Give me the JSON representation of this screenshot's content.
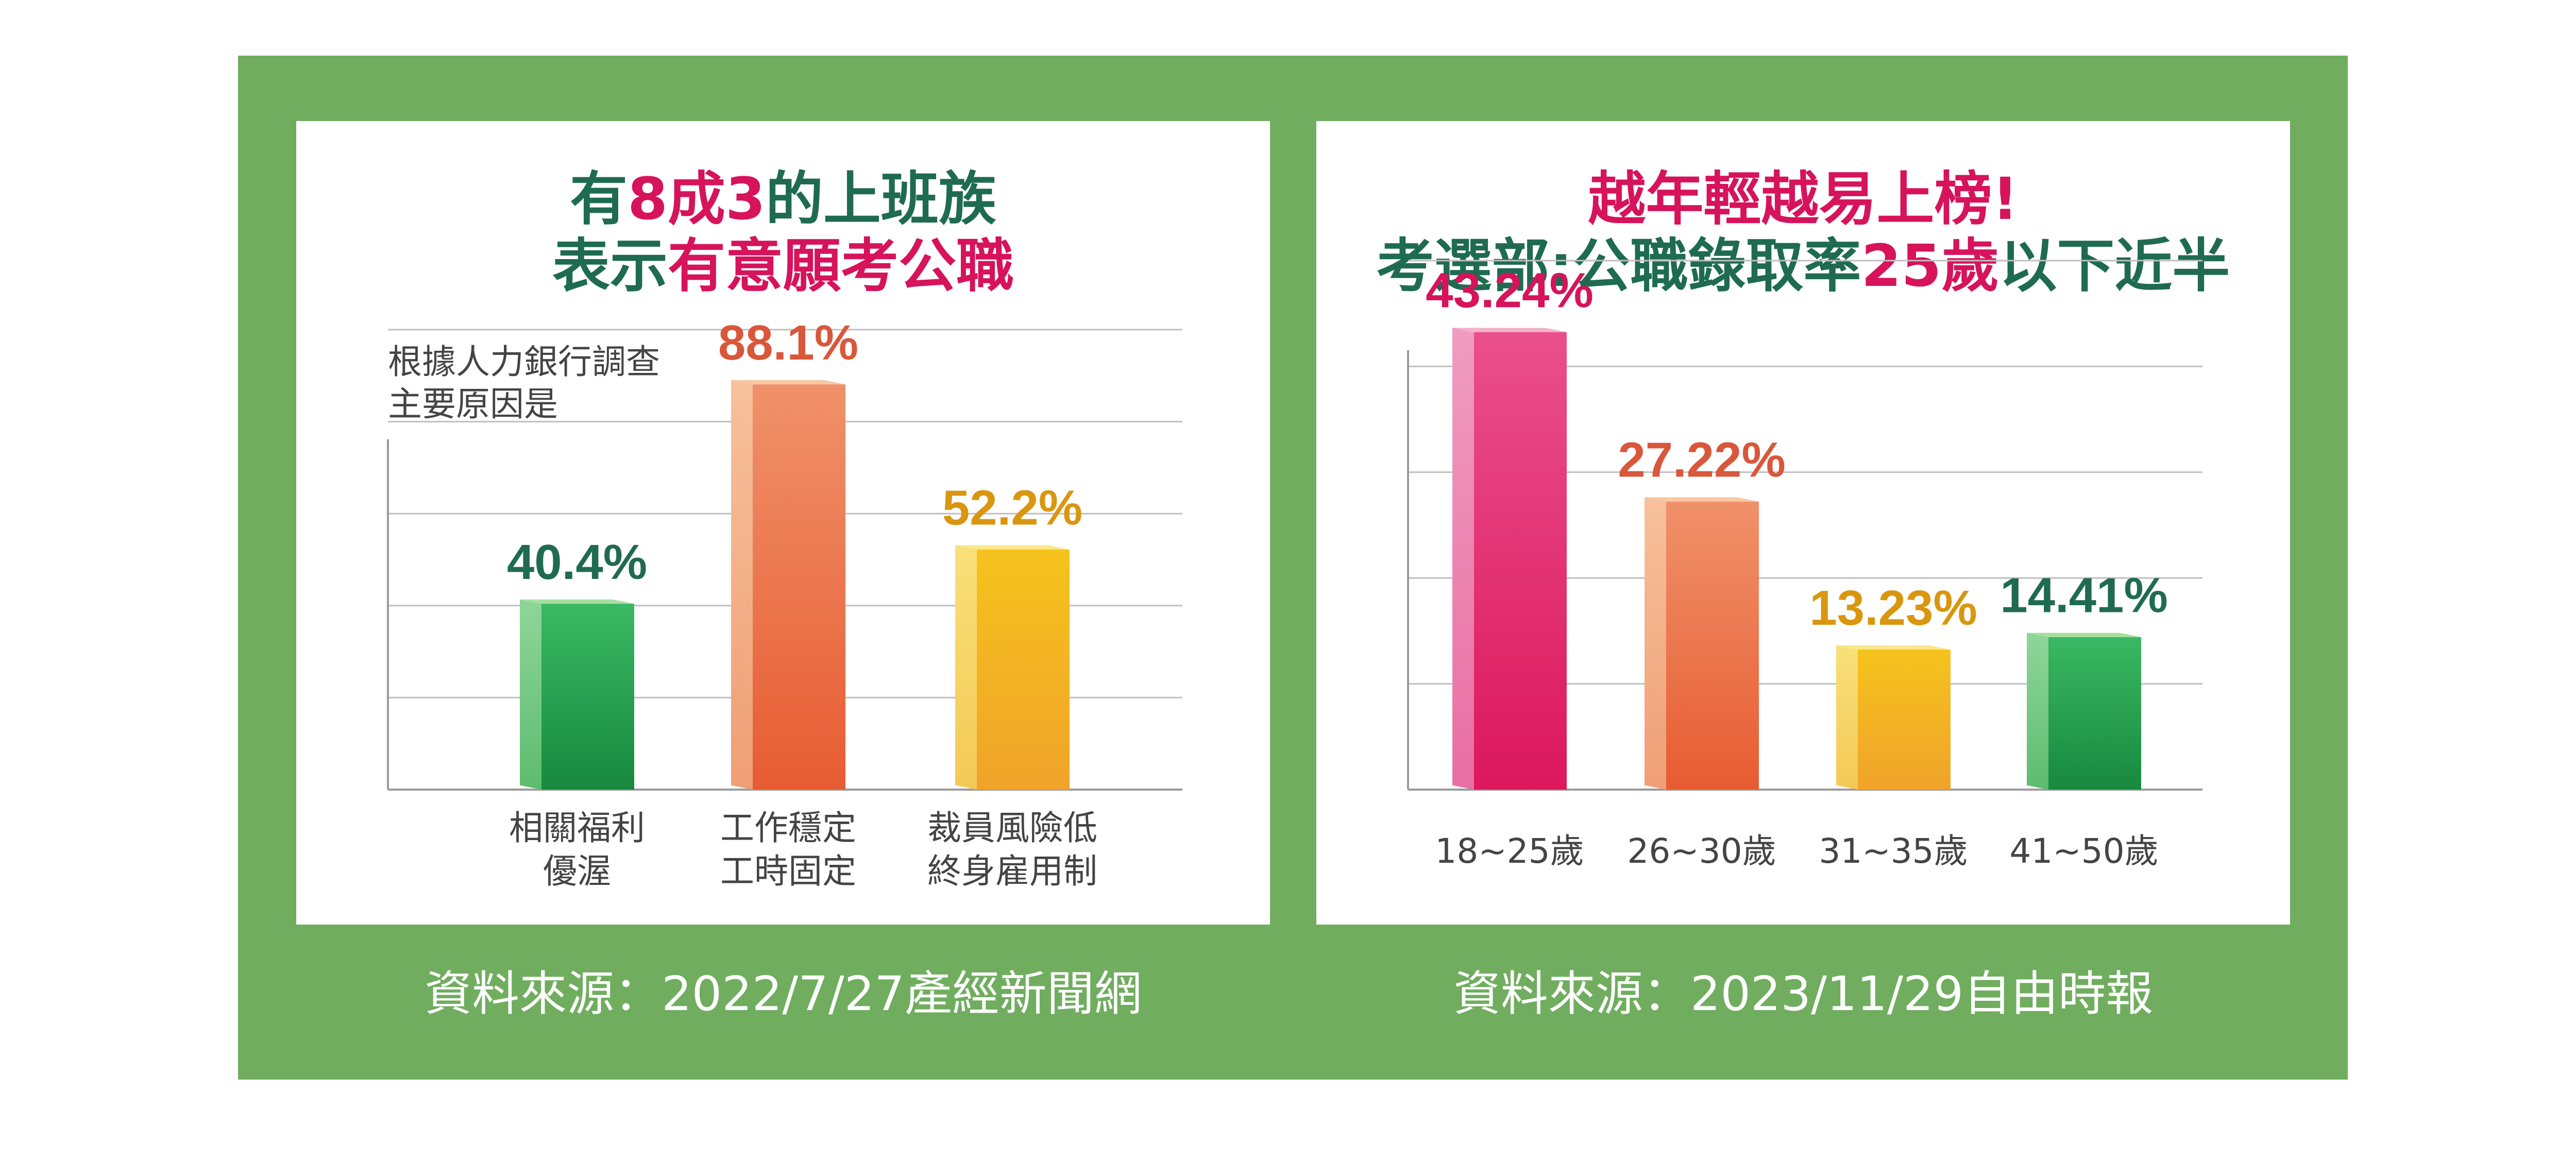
{
  "colors": {
    "frame": "#70ad5f",
    "title_green": "#1f6b52",
    "title_pink": "#d6135b"
  },
  "left": {
    "title_line1": [
      "有",
      "8成3",
      "的上班族"
    ],
    "title_line2": [
      "表示",
      "有意願考公職"
    ],
    "note_line1": "根據人力銀行調查",
    "note_line2": "主要原因是",
    "source": "資料來源：2022/7/27產經新聞網"
  },
  "right": {
    "title_line1": "越年輕越易上榜!",
    "title_line2": [
      "考選部:公職錄取率",
      "25歲",
      "以下近半"
    ],
    "source": "資料來源：2023/11/29自由時報"
  },
  "chart_data": [
    {
      "type": "bar",
      "categories": [
        [
          "相關福利",
          "優渥"
        ],
        [
          "工作穩定",
          "工時固定"
        ],
        [
          "裁員風險低",
          "終身雇用制"
        ]
      ],
      "values": [
        40.4,
        88.1,
        52.2
      ],
      "value_labels": [
        "40.4%",
        "88.1%",
        "52.2%"
      ],
      "label_colors": [
        "#1f6b52",
        "#d9573a",
        "#d9960e"
      ],
      "bar_colors": [
        "green",
        "orange",
        "yellow"
      ],
      "ylim": [
        0,
        100
      ],
      "grid": true
    },
    {
      "type": "bar",
      "categories": [
        [
          "18~25歲"
        ],
        [
          "26~30歲"
        ],
        [
          "31~35歲"
        ],
        [
          "41~50歲"
        ]
      ],
      "values": [
        43.24,
        27.22,
        13.23,
        14.41
      ],
      "value_labels": [
        "43.24%",
        "27.22%",
        "13.23%",
        "14.41%"
      ],
      "label_colors": [
        "#d6135b",
        "#d9573a",
        "#d9960e",
        "#1f6b52"
      ],
      "bar_colors": [
        "pink",
        "orange",
        "yellow",
        "green"
      ],
      "ylim": [
        0,
        50
      ],
      "grid": true
    }
  ]
}
